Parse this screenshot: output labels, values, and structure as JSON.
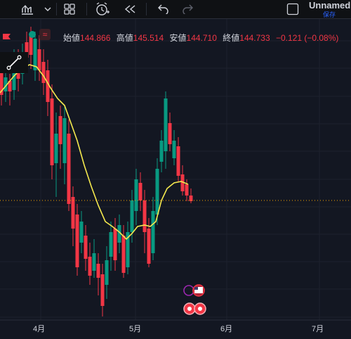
{
  "toolbar": {
    "icons": [
      "chart-type-icon",
      "chevron-down-icon",
      "layout-grid-icon",
      "alert-add-icon",
      "replay-icon",
      "undo-icon",
      "redo-icon",
      "fullscreen-icon"
    ],
    "layout_name": "Unnamed",
    "save_label": "保存"
  },
  "legend": {
    "open_label": "始値",
    "open_value": "144.866",
    "high_label": "高値",
    "high_value": "145.514",
    "low_label": "安値",
    "low_value": "144.710",
    "close_label": "終値",
    "close_value": "144.733",
    "change": "−0.121 (−0.08%)",
    "eq_symbol": "≈"
  },
  "x_axis": {
    "ticks": [
      "4月",
      "5月",
      "6月",
      "7月"
    ]
  },
  "colors": {
    "background": "#131722",
    "up": "#089981",
    "down": "#f23645",
    "ma": "#f5e94e",
    "price_line": "#f7a600",
    "grid": "#1e222d"
  },
  "chart_data": {
    "type": "candlestick",
    "indicator": "moving average",
    "last_price_line": 144.733
  },
  "markers": [
    "us-flag-event-icon",
    "ring-event-icon"
  ]
}
